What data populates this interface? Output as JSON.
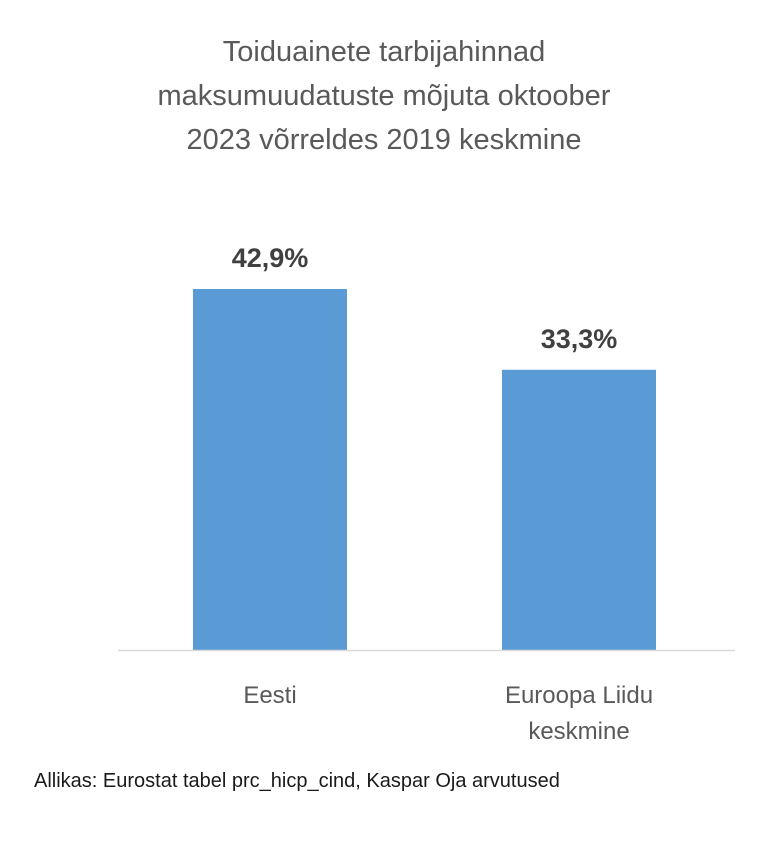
{
  "chart_data": {
    "type": "bar",
    "title_lines": [
      "Toiduainete tarbijahinnad",
      "maksumuudatuste mõjuta oktoober",
      "2023 võrreldes 2019 keskmine"
    ],
    "categories": [
      [
        "Eesti"
      ],
      [
        "Euroopa Liidu",
        "keskmine"
      ]
    ],
    "values": [
      42.9,
      33.3
    ],
    "data_labels": [
      "42,9%",
      "33,3%"
    ],
    "ylim": [
      0,
      42.9
    ],
    "grid": false,
    "legend": "none",
    "bar_color": "#5B9BD5",
    "axis_color": "#D9D9D9",
    "label_color": "#404040"
  },
  "source": "Allikas: Eurostat tabel prc_hicp_cind, Kaspar Oja arvutused"
}
